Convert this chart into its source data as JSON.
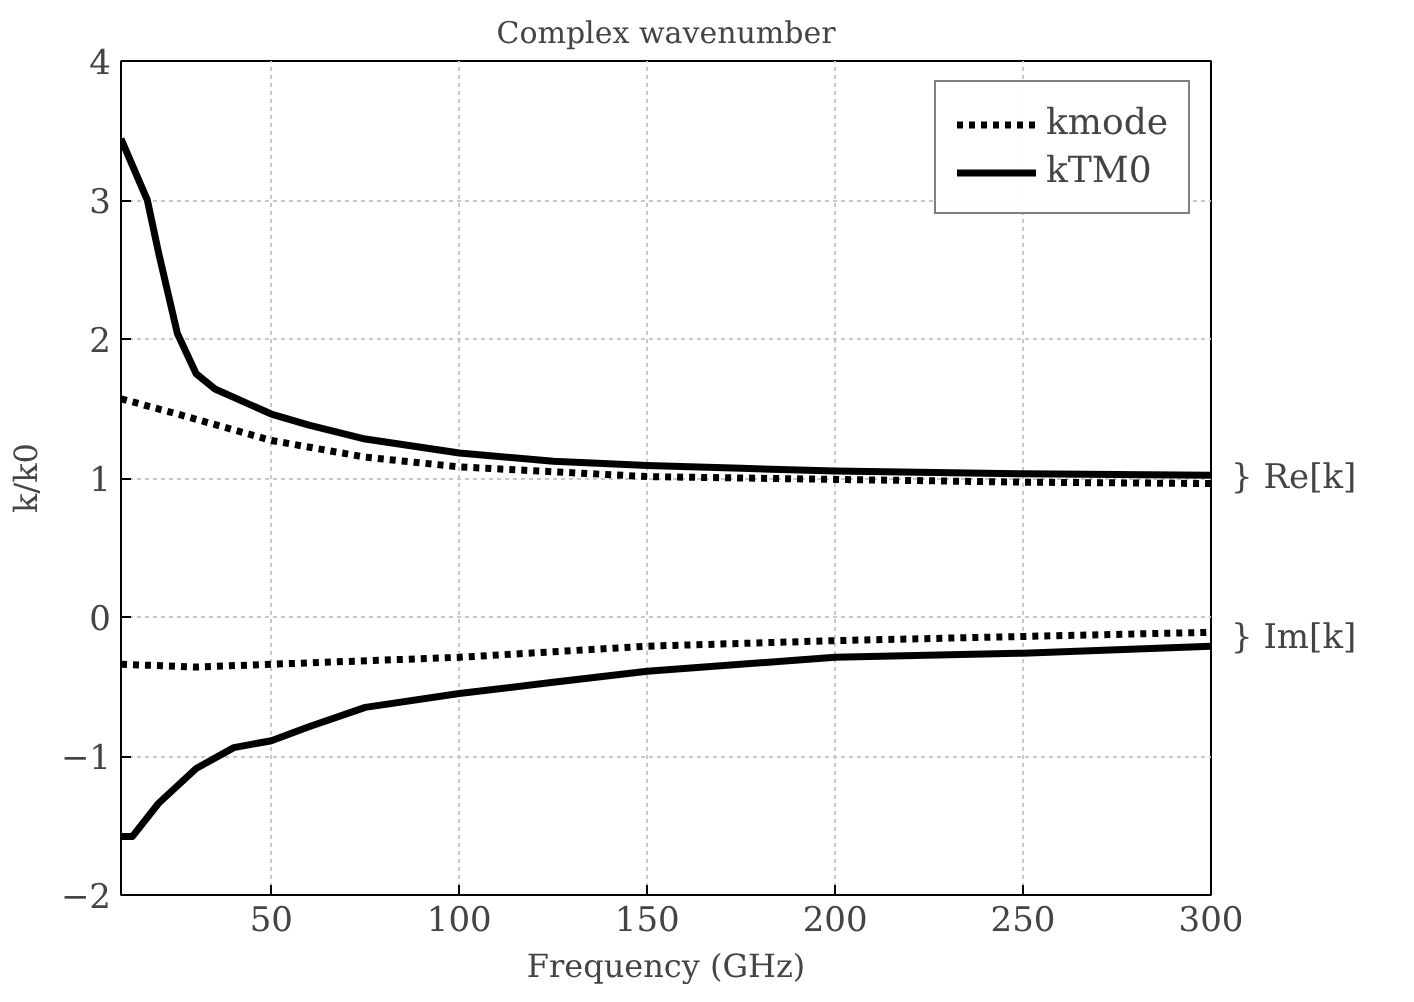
{
  "chart_data": {
    "type": "line",
    "title": "Complex wavenumber",
    "xlabel": "Frequency (GHz)",
    "ylabel": "k/k0",
    "xlim": [
      10,
      300
    ],
    "xticks": [
      50,
      100,
      150,
      200,
      250,
      300
    ],
    "ylim": [
      -2,
      4
    ],
    "yticks": [
      -2,
      -1,
      0,
      1,
      2,
      3,
      4
    ],
    "grid": true,
    "legend": "top right",
    "marker": "none",
    "series": [
      {
        "name": "kmode",
        "color": "#000000",
        "line_style": "dotted",
        "x": [
          10,
          25,
          50,
          75,
          100,
          150,
          200,
          250,
          300
        ],
        "values": [
          1.57,
          1.46,
          1.27,
          1.15,
          1.08,
          1.01,
          0.99,
          0.97,
          0.96
        ]
      },
      {
        "name": "kTM0",
        "color": "#000000",
        "line_style": "solid",
        "x": [
          10,
          17,
          20,
          25,
          30,
          35,
          50,
          60,
          75,
          100,
          125,
          150,
          175,
          200,
          250,
          300
        ],
        "values": [
          3.44,
          3.0,
          2.62,
          2.04,
          1.75,
          1.64,
          1.46,
          1.38,
          1.28,
          1.18,
          1.12,
          1.09,
          1.07,
          1.05,
          1.03,
          1.02
        ]
      },
      {
        "color": "#000000",
        "line_style": "dotted",
        "x": [
          10,
          30,
          50,
          100,
          150,
          200,
          250,
          300
        ],
        "values": [
          -0.34,
          -0.36,
          -0.34,
          -0.29,
          -0.21,
          -0.17,
          -0.14,
          -0.11
        ]
      },
      {
        "color": "#000000",
        "line_style": "solid",
        "x": [
          10,
          13,
          20,
          30,
          40,
          50,
          60,
          75,
          100,
          125,
          150,
          200,
          250,
          300
        ],
        "values": [
          -1.58,
          -1.58,
          -1.34,
          -1.09,
          -0.94,
          -0.89,
          -0.79,
          -0.65,
          -0.55,
          -0.47,
          -0.39,
          -0.29,
          -0.26,
          -0.21
        ]
      }
    ],
    "annotations": [
      {
        "text": "} Re[k]",
        "x": 300,
        "y": 1.0
      },
      {
        "text": "} Im[k]",
        "x": 300,
        "y": -0.15
      }
    ]
  }
}
